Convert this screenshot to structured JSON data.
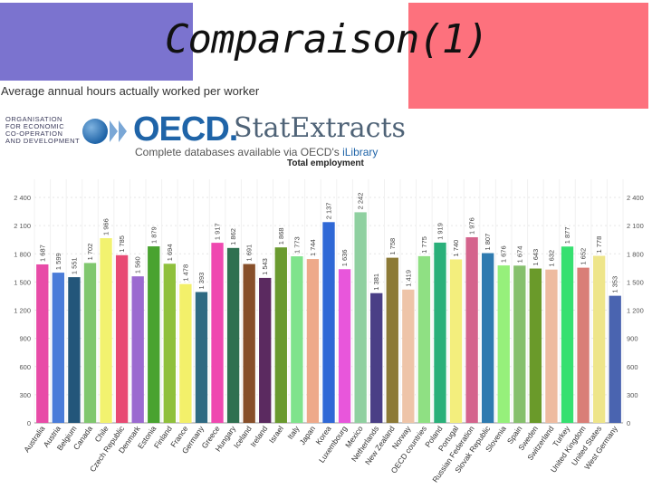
{
  "header": {
    "title": "Comparaison(1)",
    "subtitle": "Average annual hours actually worked per worker"
  },
  "branding": {
    "org_lines": [
      "ORGANISATION",
      "FOR ECONOMIC",
      "CO-OPERATION",
      "AND DEVELOPMENT"
    ],
    "oecd": "OECD.",
    "stat": "StatExtracts",
    "tagline_pre": "Complete databases available via OECD's ",
    "tagline_ilib": "iLibrary",
    "logo_icon": "oecd-globe-icon"
  },
  "chart_data": {
    "type": "bar",
    "title": "Total employment",
    "xlabel": "",
    "ylabel": "",
    "ylim": [
      0,
      2400
    ],
    "yticks": [
      0,
      300,
      600,
      900,
      1200,
      1500,
      1800,
      2100,
      2400
    ],
    "ytick_labels": [
      "0",
      "300",
      "600",
      "900",
      "1 200",
      "1 500",
      "1 800",
      "2 100",
      "2 400"
    ],
    "categories": [
      "Australia",
      "Austria",
      "Belgium",
      "Canada",
      "Chile",
      "Czech Republic",
      "Denmark",
      "Estonia",
      "Finland",
      "France",
      "Germany",
      "Greece",
      "Hungary",
      "Iceland",
      "Ireland",
      "Israel",
      "Italy",
      "Japan",
      "Korea",
      "Luxembourg",
      "Mexico",
      "Netherlands",
      "New Zealand",
      "Norway",
      "OECD countries",
      "Poland",
      "Portugal",
      "Russian Federation",
      "Slovak Republic",
      "Slovenia",
      "Spain",
      "Sweden",
      "Switzerland",
      "Turkey",
      "United Kingdom",
      "United States",
      "West Germany"
    ],
    "values": [
      1687,
      1599,
      1551,
      1702,
      1966,
      1785,
      1560,
      1879,
      1694,
      1478,
      1393,
      1917,
      1862,
      1691,
      1543,
      1868,
      1773,
      1744,
      2137,
      1636,
      2242,
      1381,
      1758,
      1419,
      1775,
      1919,
      1740,
      1976,
      1807,
      1676,
      1674,
      1643,
      1632,
      1877,
      1652,
      1778,
      1353
    ],
    "value_labels": [
      "1 687",
      "1 599",
      "1 551",
      "1 702",
      "1 966",
      "1 785",
      "1 560",
      "1 879",
      "1 694",
      "1 478",
      "1 393",
      "1 917",
      "1 862",
      "1 691",
      "1 543",
      "1 868",
      "1 773",
      "1 744",
      "2 137",
      "1 636",
      "2 242",
      "1 381",
      "1 758",
      "1 419",
      "1 775",
      "1 919",
      "1 740",
      "1 976",
      "1 807",
      "1 676",
      "1 674",
      "1 643",
      "1 632",
      "1 877",
      "1 652",
      "1 778",
      "1 353"
    ],
    "colors": [
      "#e84ba7",
      "#4a7cd9",
      "#23567a",
      "#80c76e",
      "#f2f26f",
      "#e84a73",
      "#9b6ad0",
      "#49a330",
      "#8fc03c",
      "#f3f06a",
      "#2f6a82",
      "#ef48b0",
      "#2f7050",
      "#874f2a",
      "#5b2a60",
      "#6a9a2f",
      "#7fe38c",
      "#eea98a",
      "#2f68d6",
      "#e856db",
      "#8fd0a0",
      "#4a3f86",
      "#8c7a36",
      "#eec4a8",
      "#8fe083",
      "#2ab07a",
      "#f3ee7d",
      "#d4638c",
      "#2f7bb0",
      "#96f07b",
      "#86c06d",
      "#6a9a2a",
      "#eebba0",
      "#36e070",
      "#d97e77",
      "#eee58a",
      "#4a64b0"
    ]
  }
}
